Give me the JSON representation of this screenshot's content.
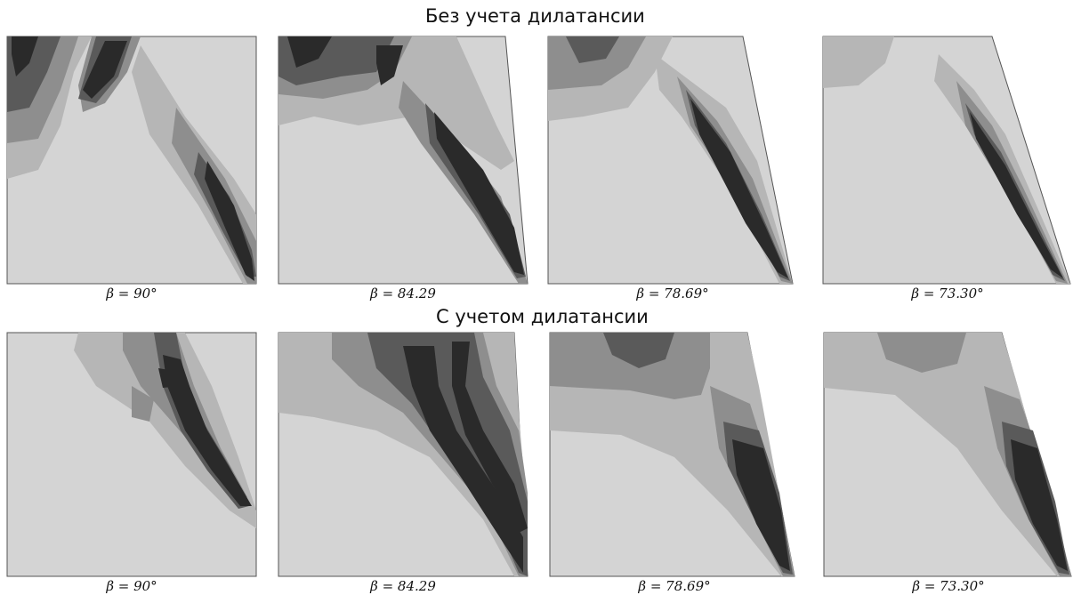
{
  "rows": [
    {
      "title": "Без учета дилатансии",
      "panels": [
        {
          "caption": "β = 90°"
        },
        {
          "caption": "β = 84.29"
        },
        {
          "caption": "β = 78.69°"
        },
        {
          "caption": "β = 73.30°"
        }
      ]
    },
    {
      "title": "С учетом дилатансии",
      "panels": [
        {
          "caption": "β = 90°"
        },
        {
          "caption": "β = 84.29"
        },
        {
          "caption": "β = 78.69°"
        },
        {
          "caption": "β = 73.30°"
        }
      ]
    }
  ],
  "colors": {
    "background": "#d4d4d4",
    "level1": "#b6b6b6",
    "level2": "#8e8e8e",
    "level3": "#5a5a5a",
    "level4": "#2a2a2a",
    "outline": "#555555"
  }
}
